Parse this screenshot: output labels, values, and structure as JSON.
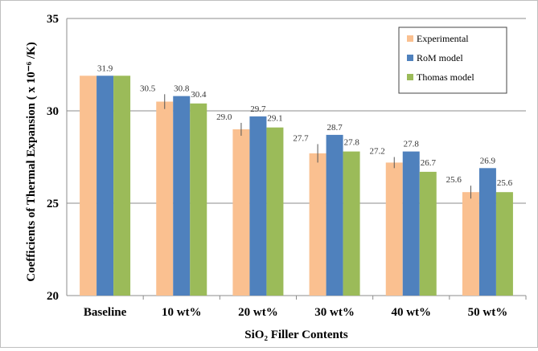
{
  "chart_data": {
    "type": "bar",
    "categories": [
      "Baseline",
      "10 wt%",
      "20 wt%",
      "30 wt%",
      "40 wt%",
      "50 wt%"
    ],
    "series": [
      {
        "name": "Experimental",
        "color": "#FAC090",
        "values": [
          31.9,
          30.5,
          29.0,
          27.7,
          27.2,
          25.6
        ],
        "labels": [
          "",
          "30.5",
          "29.0",
          "27.7",
          "27.2",
          "25.6"
        ],
        "error": [
          0,
          0.4,
          0.35,
          0.5,
          0.3,
          0.35
        ]
      },
      {
        "name": "RoM model",
        "color": "#4F81BD",
        "values": [
          31.9,
          30.8,
          29.7,
          28.7,
          27.8,
          26.9
        ],
        "labels": [
          "31.9",
          "30.8",
          "29.7",
          "28.7",
          "27.8",
          "26.9"
        ]
      },
      {
        "name": "Thomas model",
        "color": "#9BBB59",
        "values": [
          31.9,
          30.4,
          29.1,
          27.8,
          26.7,
          25.6
        ],
        "labels": [
          "",
          "30.4",
          "29.1",
          "27.8",
          "26.7",
          "25.6"
        ]
      }
    ],
    "xlabel": "SiO₂ Filler Contents",
    "ylabel": "Coefficients of Thermal Expansion ( x 10⁻⁶ /K)",
    "ylim": [
      20,
      35
    ],
    "yticks": [
      20,
      25,
      30,
      35
    ],
    "grid": true,
    "legend": "top-right"
  }
}
